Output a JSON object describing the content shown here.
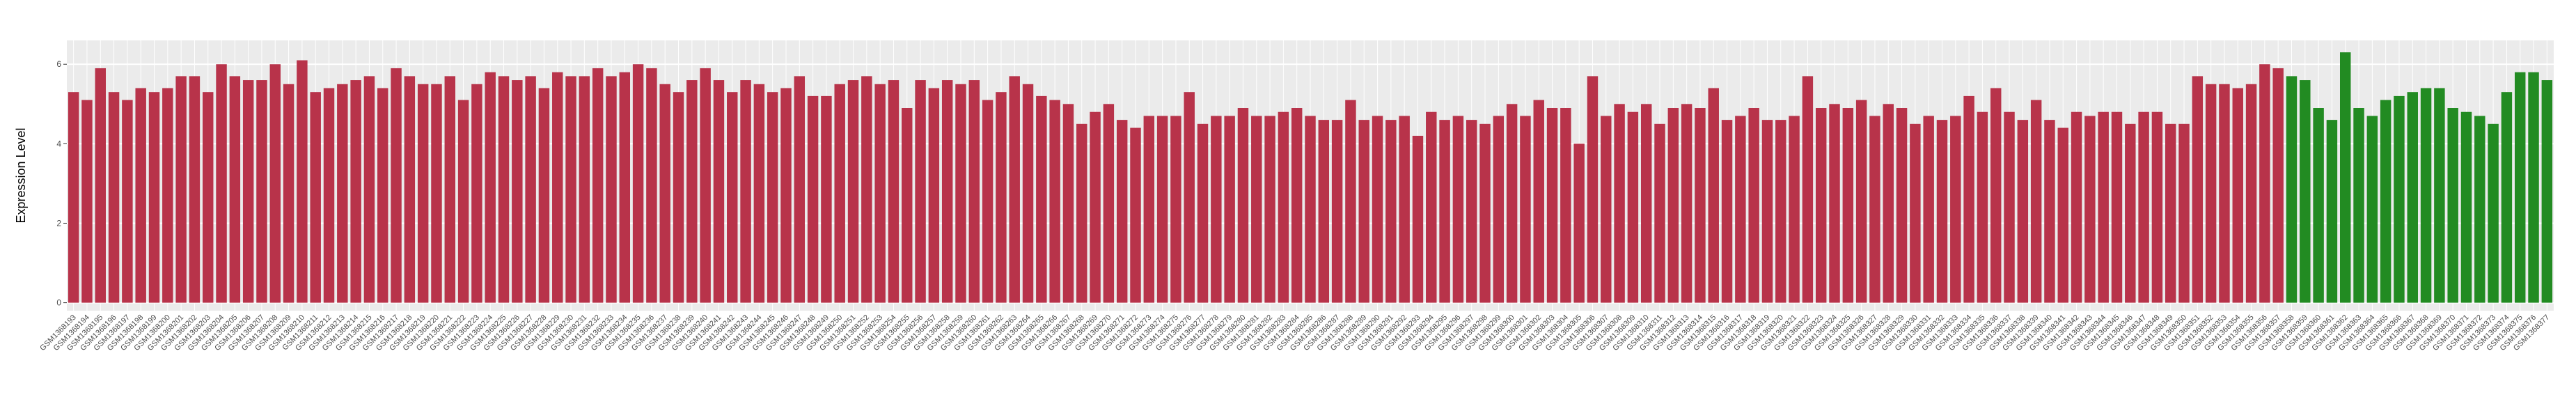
{
  "chart_data": {
    "type": "bar",
    "y_label": "Expression Level",
    "ylim": [
      -0.2,
      6.6
    ],
    "yticks": [
      0,
      2,
      4,
      6
    ],
    "grid": true,
    "categories": [
      "GSM1368193",
      "GSM1368194",
      "GSM1368195",
      "GSM1368196",
      "GSM1368197",
      "GSM1368198",
      "GSM1368199",
      "GSM1368200",
      "GSM1368201",
      "GSM1368202",
      "GSM1368203",
      "GSM1368204",
      "GSM1368205",
      "GSM1368206",
      "GSM1368207",
      "GSM1368208",
      "GSM1368209",
      "GSM1368210",
      "GSM1368211",
      "GSM1368212",
      "GSM1368213",
      "GSM1368214",
      "GSM1368215",
      "GSM1368216",
      "GSM1368217",
      "GSM1368218",
      "GSM1368219",
      "GSM1368220",
      "GSM1368221",
      "GSM1368222",
      "GSM1368223",
      "GSM1368224",
      "GSM1368225",
      "GSM1368226",
      "GSM1368227",
      "GSM1368228",
      "GSM1368229",
      "GSM1368230",
      "GSM1368231",
      "GSM1368232",
      "GSM1368233",
      "GSM1368234",
      "GSM1368235",
      "GSM1368236",
      "GSM1368237",
      "GSM1368238",
      "GSM1368239",
      "GSM1368240",
      "GSM1368241",
      "GSM1368242",
      "GSM1368243",
      "GSM1368244",
      "GSM1368245",
      "GSM1368246",
      "GSM1368247",
      "GSM1368248",
      "GSM1368249",
      "GSM1368250",
      "GSM1368251",
      "GSM1368252",
      "GSM1368253",
      "GSM1368254",
      "GSM1368255",
      "GSM1368256",
      "GSM1368257",
      "GSM1368258",
      "GSM1368259",
      "GSM1368260",
      "GSM1368261",
      "GSM1368262",
      "GSM1368263",
      "GSM1368264",
      "GSM1368265",
      "GSM1368266",
      "GSM1368267",
      "GSM1368268",
      "GSM1368269",
      "GSM1368270",
      "GSM1368271",
      "GSM1368272",
      "GSM1368273",
      "GSM1368274",
      "GSM1368275",
      "GSM1368276",
      "GSM1368277",
      "GSM1368278",
      "GSM1368279",
      "GSM1368280",
      "GSM1368281",
      "GSM1368282",
      "GSM1368283",
      "GSM1368284",
      "GSM1368285",
      "GSM1368286",
      "GSM1368287",
      "GSM1368288",
      "GSM1368289",
      "GSM1368290",
      "GSM1368291",
      "GSM1368292",
      "GSM1368293",
      "GSM1368294",
      "GSM1368295",
      "GSM1368296",
      "GSM1368297",
      "GSM1368298",
      "GSM1368299",
      "GSM1368300",
      "GSM1368301",
      "GSM1368302",
      "GSM1368303",
      "GSM1368304",
      "GSM1368305",
      "GSM1368306",
      "GSM1368307",
      "GSM1368308",
      "GSM1368309",
      "GSM1368310",
      "GSM1368311",
      "GSM1368312",
      "GSM1368313",
      "GSM1368314",
      "GSM1368315",
      "GSM1368316",
      "GSM1368317",
      "GSM1368318",
      "GSM1368319",
      "GSM1368320",
      "GSM1368321",
      "GSM1368322",
      "GSM1368323",
      "GSM1368324",
      "GSM1368325",
      "GSM1368326",
      "GSM1368327",
      "GSM1368328",
      "GSM1368329",
      "GSM1368330",
      "GSM1368331",
      "GSM1368332",
      "GSM1368333",
      "GSM1368334",
      "GSM1368335",
      "GSM1368336",
      "GSM1368337",
      "GSM1368338",
      "GSM1368339",
      "GSM1368340",
      "GSM1368341",
      "GSM1368342",
      "GSM1368343",
      "GSM1368344",
      "GSM1368345",
      "GSM1368346",
      "GSM1368347",
      "GSM1368348",
      "GSM1368349",
      "GSM1368350",
      "GSM1368351",
      "GSM1368352",
      "GSM1368353",
      "GSM1368354",
      "GSM1368355",
      "GSM1368356",
      "GSM1368357",
      "GSM1368358",
      "GSM1368359",
      "GSM1368360",
      "GSM1368361",
      "GSM1368362",
      "GSM1368363",
      "GSM1368364",
      "GSM1368365",
      "GSM1368366",
      "GSM1368367",
      "GSM1368368",
      "GSM1368369",
      "GSM1368370",
      "GSM1368371",
      "GSM1368372",
      "GSM1368373",
      "GSM1368374",
      "GSM1368375",
      "GSM1368376",
      "GSM1368377"
    ],
    "values": [
      5.3,
      5.1,
      5.9,
      5.3,
      5.1,
      5.4,
      5.3,
      5.4,
      5.7,
      5.7,
      5.3,
      6.0,
      5.7,
      5.6,
      5.6,
      6.0,
      5.5,
      6.1,
      5.3,
      5.4,
      5.5,
      5.6,
      5.7,
      5.4,
      5.9,
      5.7,
      5.5,
      5.5,
      5.7,
      5.1,
      5.5,
      5.8,
      5.7,
      5.6,
      5.7,
      5.4,
      5.8,
      5.7,
      5.7,
      5.9,
      5.7,
      5.8,
      6.0,
      5.9,
      5.5,
      5.3,
      5.6,
      5.9,
      5.6,
      5.3,
      5.6,
      5.5,
      5.3,
      5.4,
      5.7,
      5.2,
      5.2,
      5.5,
      5.6,
      5.7,
      5.5,
      5.6,
      4.9,
      5.6,
      5.4,
      5.6,
      5.5,
      5.6,
      5.1,
      5.3,
      5.7,
      5.5,
      5.2,
      5.1,
      5.0,
      4.5,
      4.8,
      5.0,
      4.6,
      4.4,
      4.7,
      4.7,
      4.7,
      5.3,
      4.5,
      4.7,
      4.7,
      4.9,
      4.7,
      4.7,
      4.8,
      4.9,
      4.7,
      4.6,
      4.6,
      5.1,
      4.6,
      4.7,
      4.6,
      4.7,
      4.2,
      4.8,
      4.6,
      4.7,
      4.6,
      4.5,
      4.7,
      5.0,
      4.7,
      5.1,
      4.9,
      4.9,
      4.0,
      5.7,
      4.7,
      5.0,
      4.8,
      5.0,
      4.5,
      4.9,
      5.0,
      4.9,
      5.4,
      4.6,
      4.7,
      4.9,
      4.6,
      4.6,
      4.7,
      5.7,
      4.9,
      5.0,
      4.9,
      5.1,
      4.7,
      5.0,
      4.9,
      4.5,
      4.7,
      4.6,
      4.7,
      5.2,
      4.8,
      5.4,
      4.8,
      4.6,
      5.1,
      4.6,
      4.4,
      4.8,
      4.7,
      4.8,
      4.8,
      4.5,
      4.8,
      4.8,
      4.5,
      4.5,
      5.7,
      5.5,
      5.5,
      5.4,
      5.5,
      6.0,
      5.9,
      5.7,
      5.6,
      4.9,
      4.6,
      6.3,
      4.9,
      4.7,
      5.1,
      5.2,
      5.3,
      5.4,
      5.4,
      4.9,
      4.8,
      4.7,
      4.5,
      5.3,
      5.8,
      5.8,
      5.6
    ],
    "colors": [
      "#b8334a",
      "#b8334a",
      "#b8334a",
      "#b8334a",
      "#b8334a",
      "#b8334a",
      "#b8334a",
      "#b8334a",
      "#b8334a",
      "#b8334a",
      "#b8334a",
      "#b8334a",
      "#b8334a",
      "#b8334a",
      "#b8334a",
      "#b8334a",
      "#b8334a",
      "#b8334a",
      "#b8334a",
      "#b8334a",
      "#b8334a",
      "#b8334a",
      "#b8334a",
      "#b8334a",
      "#b8334a",
      "#b8334a",
      "#b8334a",
      "#b8334a",
      "#b8334a",
      "#b8334a",
      "#b8334a",
      "#b8334a",
      "#b8334a",
      "#b8334a",
      "#b8334a",
      "#b8334a",
      "#b8334a",
      "#b8334a",
      "#b8334a",
      "#b8334a",
      "#b8334a",
      "#b8334a",
      "#b8334a",
      "#b8334a",
      "#b8334a",
      "#b8334a",
      "#b8334a",
      "#b8334a",
      "#b8334a",
      "#b8334a",
      "#b8334a",
      "#b8334a",
      "#b8334a",
      "#b8334a",
      "#b8334a",
      "#b8334a",
      "#b8334a",
      "#b8334a",
      "#b8334a",
      "#b8334a",
      "#b8334a",
      "#b8334a",
      "#b8334a",
      "#b8334a",
      "#b8334a",
      "#b8334a",
      "#b8334a",
      "#b8334a",
      "#b8334a",
      "#b8334a",
      "#b8334a",
      "#b8334a",
      "#b8334a",
      "#b8334a",
      "#b8334a",
      "#b8334a",
      "#b8334a",
      "#b8334a",
      "#b8334a",
      "#b8334a",
      "#b8334a",
      "#b8334a",
      "#b8334a",
      "#b8334a",
      "#b8334a",
      "#b8334a",
      "#b8334a",
      "#b8334a",
      "#b8334a",
      "#b8334a",
      "#b8334a",
      "#b8334a",
      "#b8334a",
      "#b8334a",
      "#b8334a",
      "#b8334a",
      "#b8334a",
      "#b8334a",
      "#b8334a",
      "#b8334a",
      "#b8334a",
      "#b8334a",
      "#b8334a",
      "#b8334a",
      "#b8334a",
      "#b8334a",
      "#b8334a",
      "#b8334a",
      "#b8334a",
      "#b8334a",
      "#b8334a",
      "#b8334a",
      "#b8334a",
      "#b8334a",
      "#b8334a",
      "#b8334a",
      "#b8334a",
      "#b8334a",
      "#b8334a",
      "#b8334a",
      "#b8334a",
      "#b8334a",
      "#b8334a",
      "#b8334a",
      "#b8334a",
      "#b8334a",
      "#b8334a",
      "#b8334a",
      "#b8334a",
      "#b8334a",
      "#b8334a",
      "#b8334a",
      "#b8334a",
      "#b8334a",
      "#b8334a",
      "#b8334a",
      "#b8334a",
      "#b8334a",
      "#b8334a",
      "#b8334a",
      "#b8334a",
      "#b8334a",
      "#b8334a",
      "#b8334a",
      "#b8334a",
      "#b8334a",
      "#b8334a",
      "#b8334a",
      "#b8334a",
      "#b8334a",
      "#b8334a",
      "#b8334a",
      "#b8334a",
      "#b8334a",
      "#b8334a",
      "#b8334a",
      "#b8334a",
      "#b8334a",
      "#b8334a",
      "#b8334a",
      "#b8334a",
      "#b8334a",
      "#b8334a",
      "#b8334a",
      "#b8334a",
      "#228b22",
      "#228b22",
      "#228b22",
      "#228b22",
      "#228b22",
      "#228b22",
      "#228b22",
      "#228b22",
      "#228b22",
      "#228b22",
      "#228b22",
      "#228b22",
      "#228b22",
      "#228b22",
      "#228b22",
      "#228b22",
      "#228b22",
      "#228b22",
      "#228b22",
      "#228b22",
      "#228b22",
      "#228b22"
    ]
  }
}
